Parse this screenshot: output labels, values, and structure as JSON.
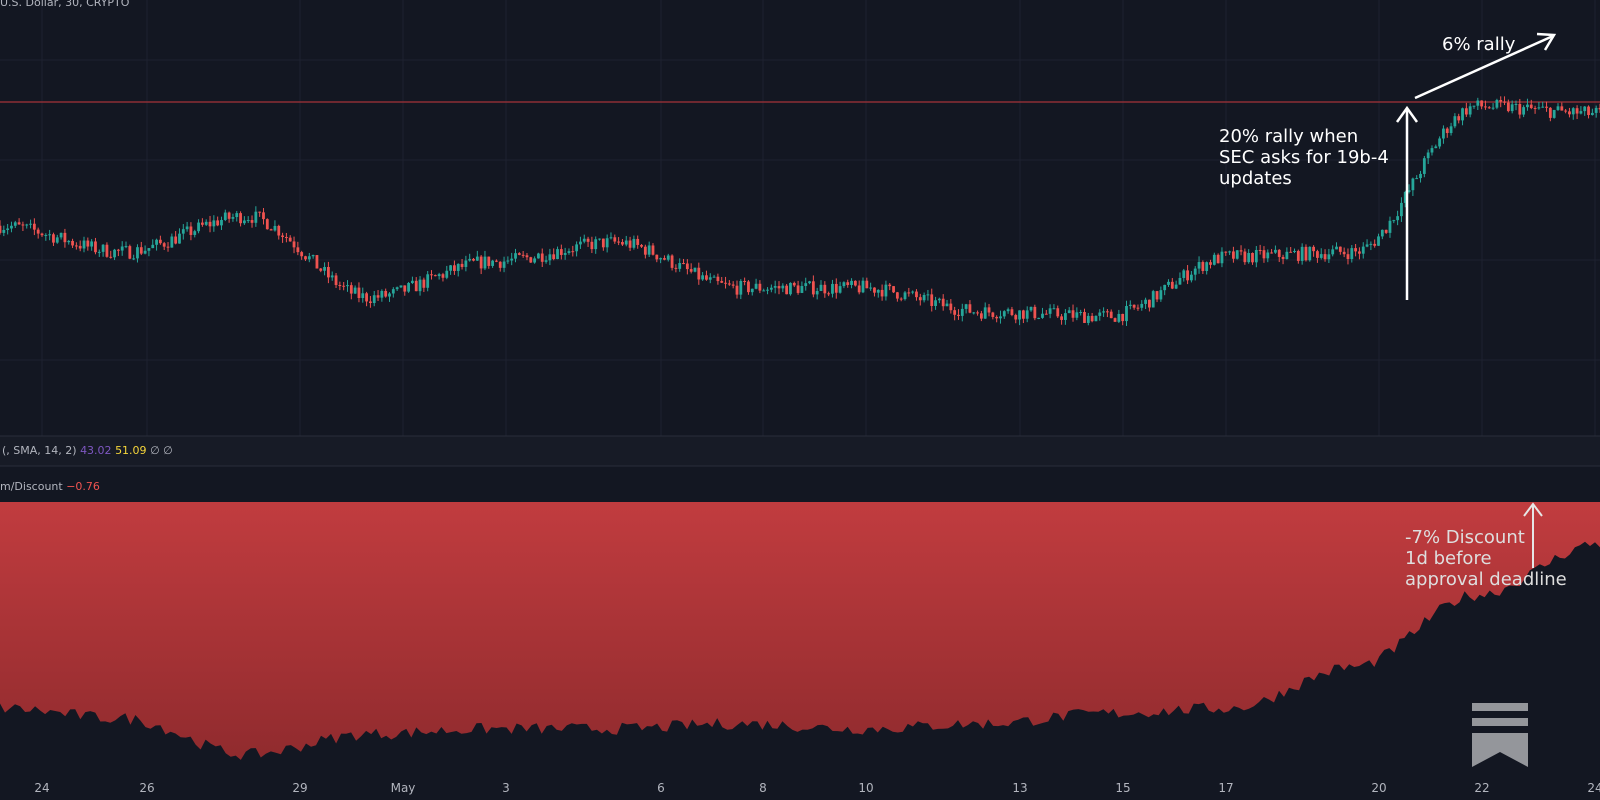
{
  "header": {
    "symbol": "U.S. Dollar, 30, CRYPTO"
  },
  "rsi_legend": {
    "label": "(, SMA, 14, 2)",
    "value1": "43.02",
    "value2": "51.09",
    "value3": "∅",
    "value4": "∅"
  },
  "premium_legend": {
    "label": "m/Discount",
    "value": "−0.76"
  },
  "annotations": {
    "rally_sec": [
      "20% rally when",
      "SEC asks for 19b-4",
      "updates"
    ],
    "rally_6": "6% rally",
    "discount": [
      "-7% Discount",
      "1d before",
      "approval deadline"
    ]
  },
  "colors": {
    "background": "#131722",
    "up_candle": "#26a69a",
    "down_candle": "#ef5350",
    "resistance_line": "#8c2f35",
    "discount_fill_top": "#c13c3f",
    "discount_fill_bottom": "#8e2a2d"
  },
  "logo": "substack-bookmark-icon",
  "chart_data": [
    {
      "type": "line",
      "title": "",
      "x_axis": {
        "tick_labels": [
          "24",
          "26",
          "29",
          "May",
          "3",
          "6",
          "8",
          "10",
          "13",
          "15",
          "17",
          "20",
          "22",
          "24"
        ]
      },
      "series": [
        {
          "x": [
            "24",
            "26",
            "29",
            "May",
            "3",
            "6",
            "8",
            "10",
            "13",
            "15",
            "17",
            "20",
            "22",
            "24"
          ],
          "values": [
            0.73,
            0.62,
            0.77,
            0.43,
            0.58,
            0.66,
            0.47,
            0.47,
            0.37,
            0.35,
            0.6,
            0.62,
            1.23,
            1.2
          ]
        }
      ],
      "ylim": [
        0,
        1.55
      ]
    },
    {
      "type": "area",
      "title": "",
      "series": [
        {
          "x": [
            "24",
            "26",
            "29",
            "May",
            "3",
            "6",
            "8",
            "10",
            "13",
            "15",
            "17",
            "20",
            "22",
            "24"
          ],
          "values": [
            -2.0,
            -2.1,
            -2.45,
            -2.25,
            -2.2,
            -2.2,
            -2.15,
            -2.2,
            -2.15,
            -2.05,
            -2.0,
            -1.6,
            -0.9,
            -0.4
          ]
        }
      ],
      "ylim": [
        -2.6,
        0
      ]
    }
  ]
}
